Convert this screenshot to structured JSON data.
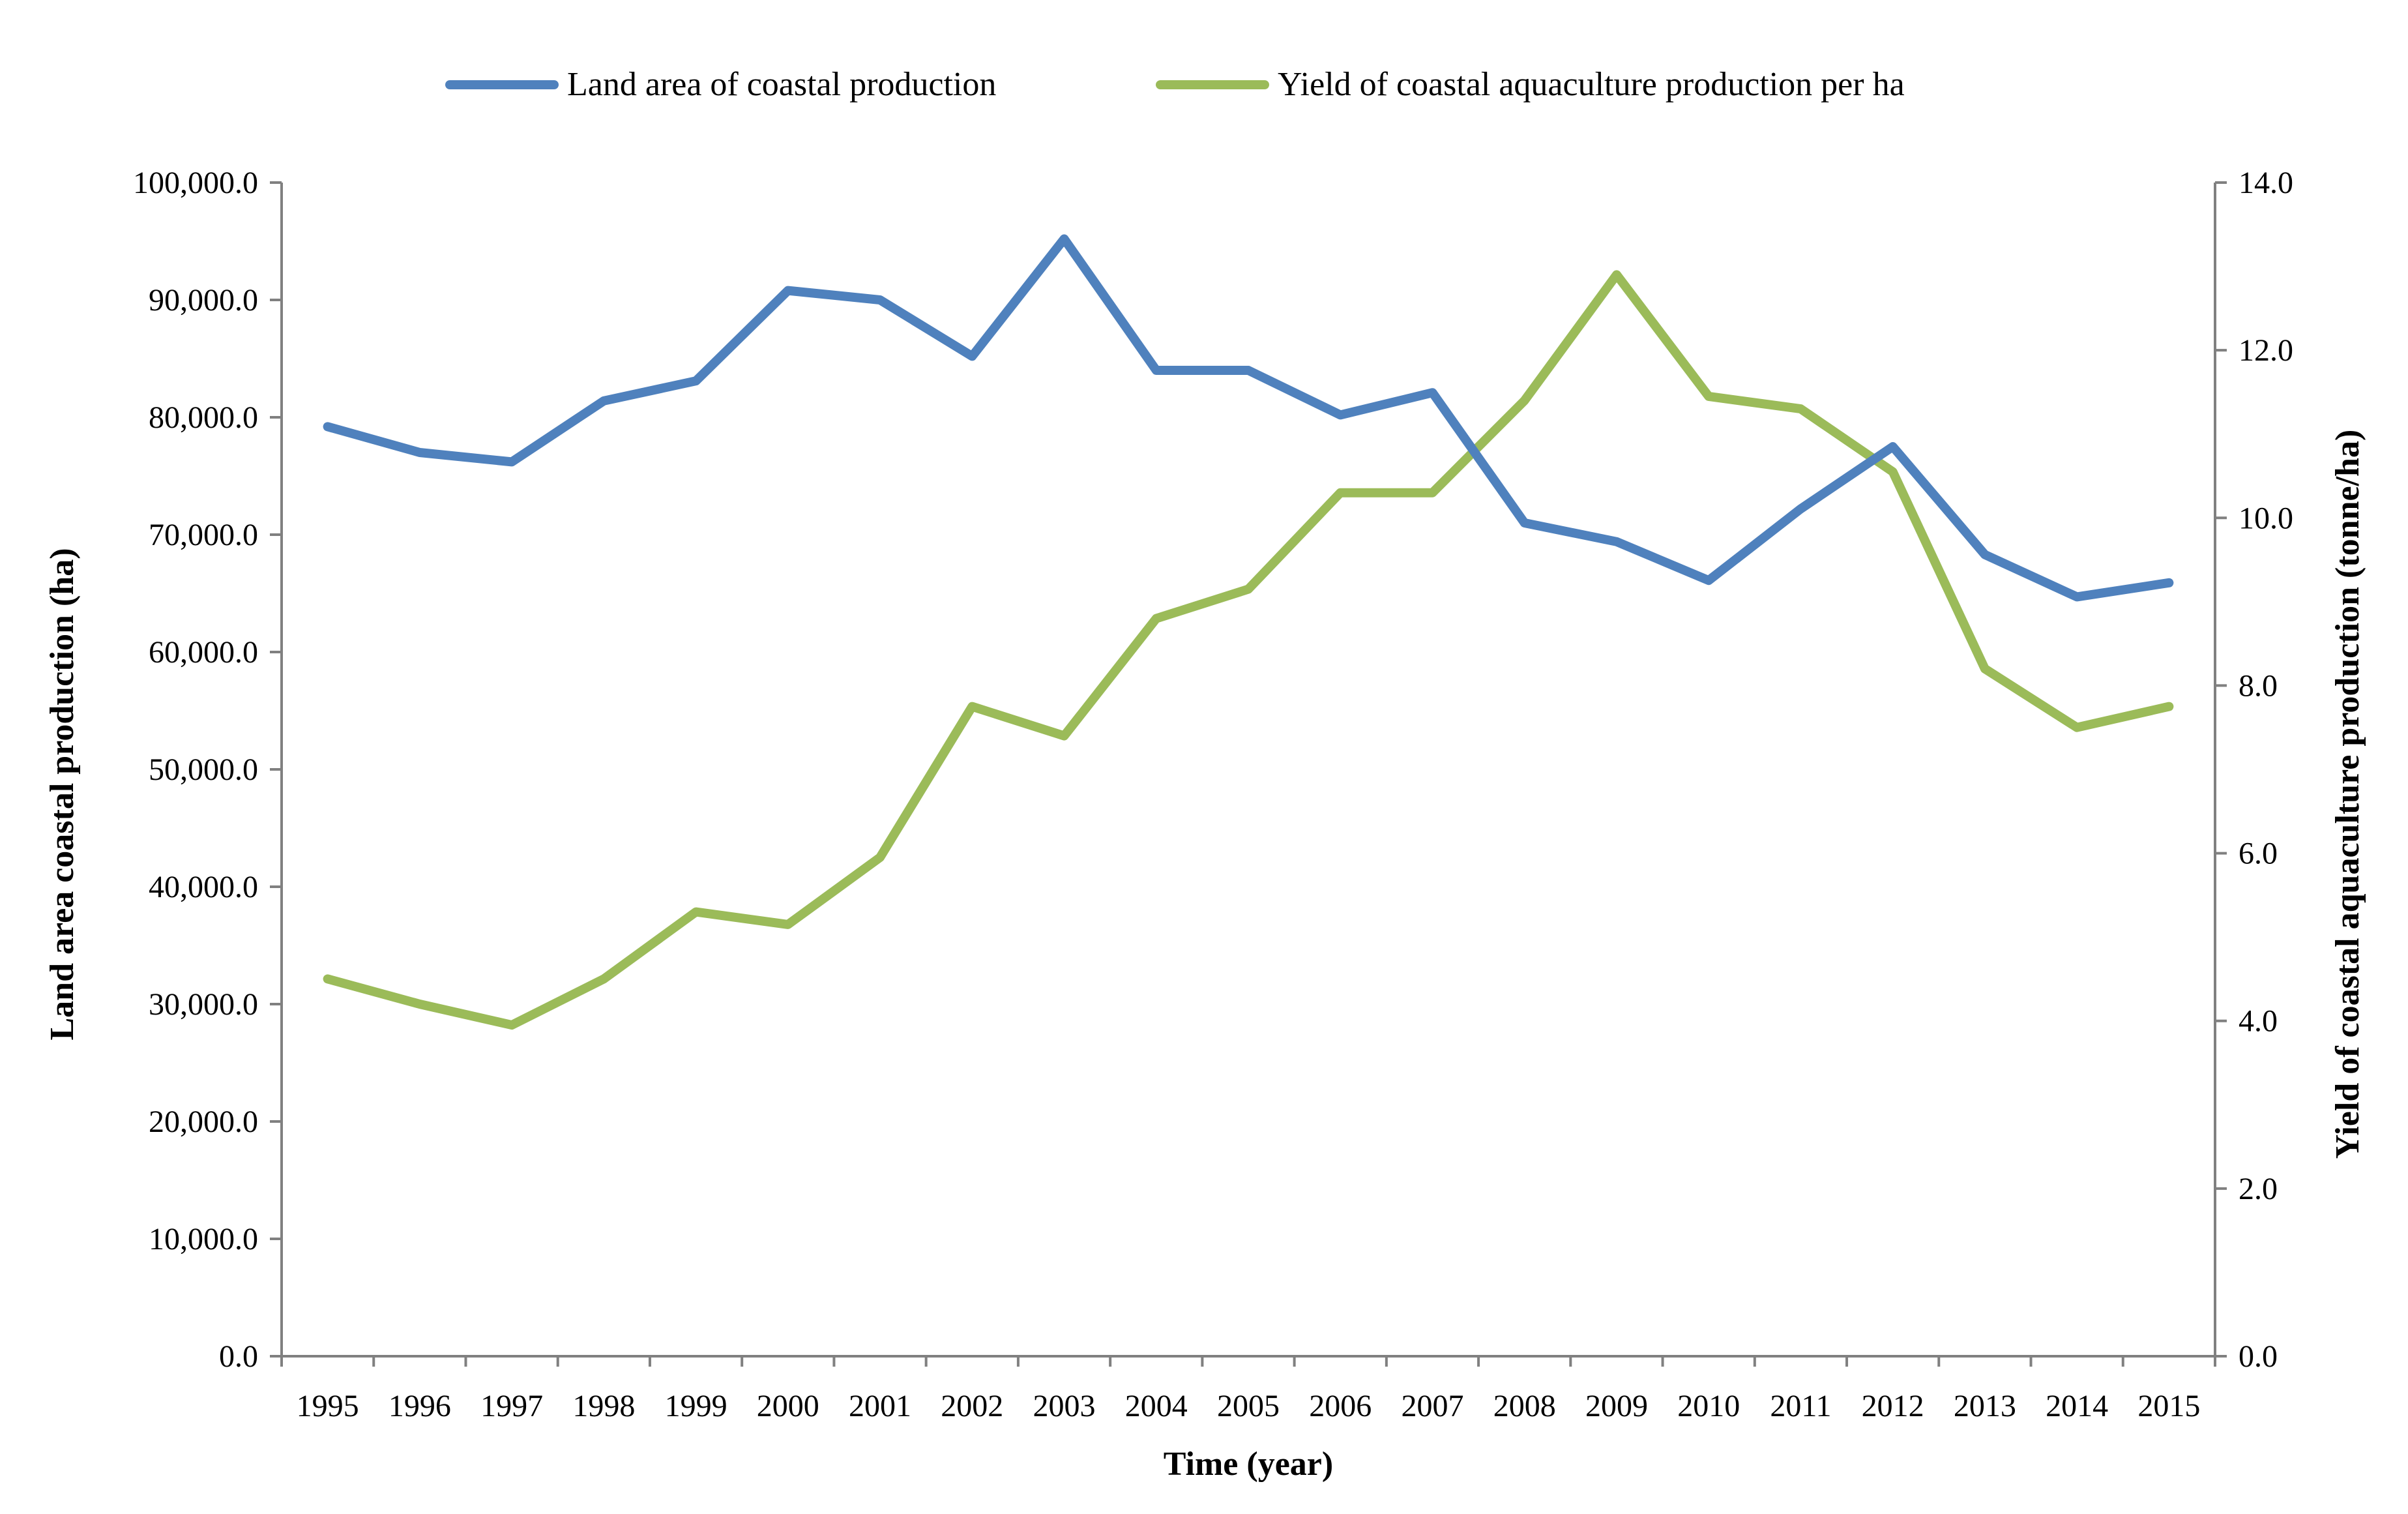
{
  "chart_data": {
    "type": "line",
    "x": [
      "1995",
      "1996",
      "1997",
      "1998",
      "1999",
      "2000",
      "2001",
      "2002",
      "2003",
      "2004",
      "2005",
      "2006",
      "2007",
      "2008",
      "2009",
      "2010",
      "2011",
      "2012",
      "2013",
      "2014",
      "2015"
    ],
    "xlabel": "Time (year)",
    "ylabel_left": "Land area coastal production (ha)",
    "ylabel_right": "Yield of coastal aquaculture production (tonne/ha)",
    "ylim_left": [
      0,
      100000
    ],
    "ylim_right": [
      0,
      14
    ],
    "yticks_left": [
      "0.0",
      "10,000.0",
      "20,000.0",
      "30,000.0",
      "40,000.0",
      "50,000.0",
      "60,000.0",
      "70,000.0",
      "80,000.0",
      "90,000.0",
      "100,000.0"
    ],
    "yticks_right": [
      "0.0",
      "2.0",
      "4.0",
      "6.0",
      "8.0",
      "10.0",
      "12.0",
      "14.0"
    ],
    "grid": false,
    "legend_position": "top",
    "series": [
      {
        "name": "Land area of coastal production",
        "axis": "left",
        "color": "#4f81bd",
        "values": [
          79200,
          77000,
          76200,
          81400,
          83100,
          90800,
          90000,
          85200,
          95200,
          84000,
          84000,
          80200,
          82100,
          71000,
          69400,
          66100,
          72200,
          77500,
          68300,
          64700,
          65900
        ]
      },
      {
        "name": "Yield of coastal aquaculture production per ha",
        "axis": "right",
        "color": "#9bbb59",
        "values": [
          4.5,
          4.2,
          3.95,
          4.5,
          5.3,
          5.15,
          5.95,
          7.75,
          7.4,
          8.8,
          9.15,
          10.3,
          10.3,
          11.4,
          12.9,
          11.45,
          11.3,
          10.55,
          8.2,
          7.5,
          7.75
        ]
      }
    ]
  }
}
